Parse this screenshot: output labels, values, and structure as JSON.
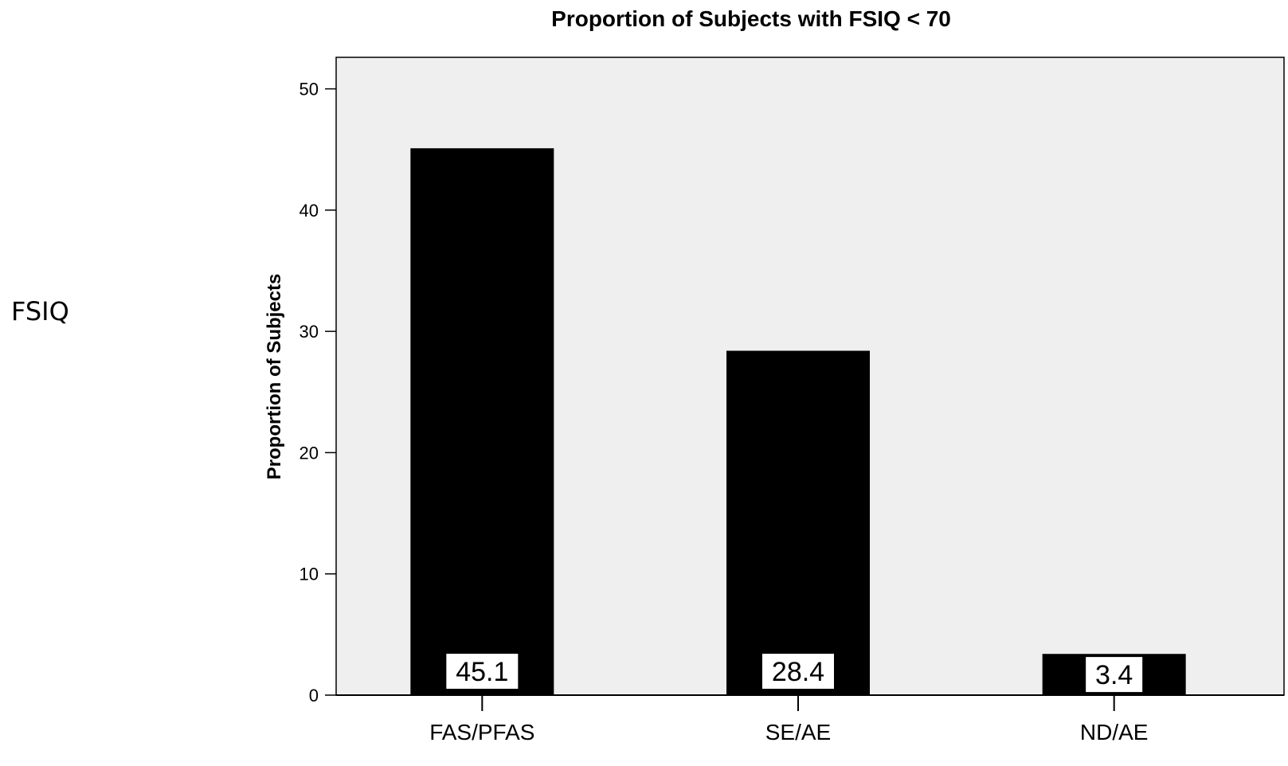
{
  "side_label": "FSIQ",
  "chart_data": {
    "type": "bar",
    "title": "Proportion of Subjects with FSIQ < 70",
    "xlabel": "",
    "ylabel": "Proportion of Subjects",
    "categories": [
      "FAS/PFAS",
      "SE/AE",
      "ND/AE"
    ],
    "values": [
      45.1,
      28.4,
      3.4
    ],
    "data_labels": [
      "45.1",
      "28.4",
      "3.4"
    ],
    "ylim": [
      0,
      52.6
    ],
    "yticks": [
      0,
      10,
      20,
      30,
      40,
      50
    ],
    "grid": false,
    "legend": "none",
    "colors": {
      "bar": "#000000",
      "plot_background": "#efefef",
      "data_label_box": "#ffffff"
    }
  }
}
